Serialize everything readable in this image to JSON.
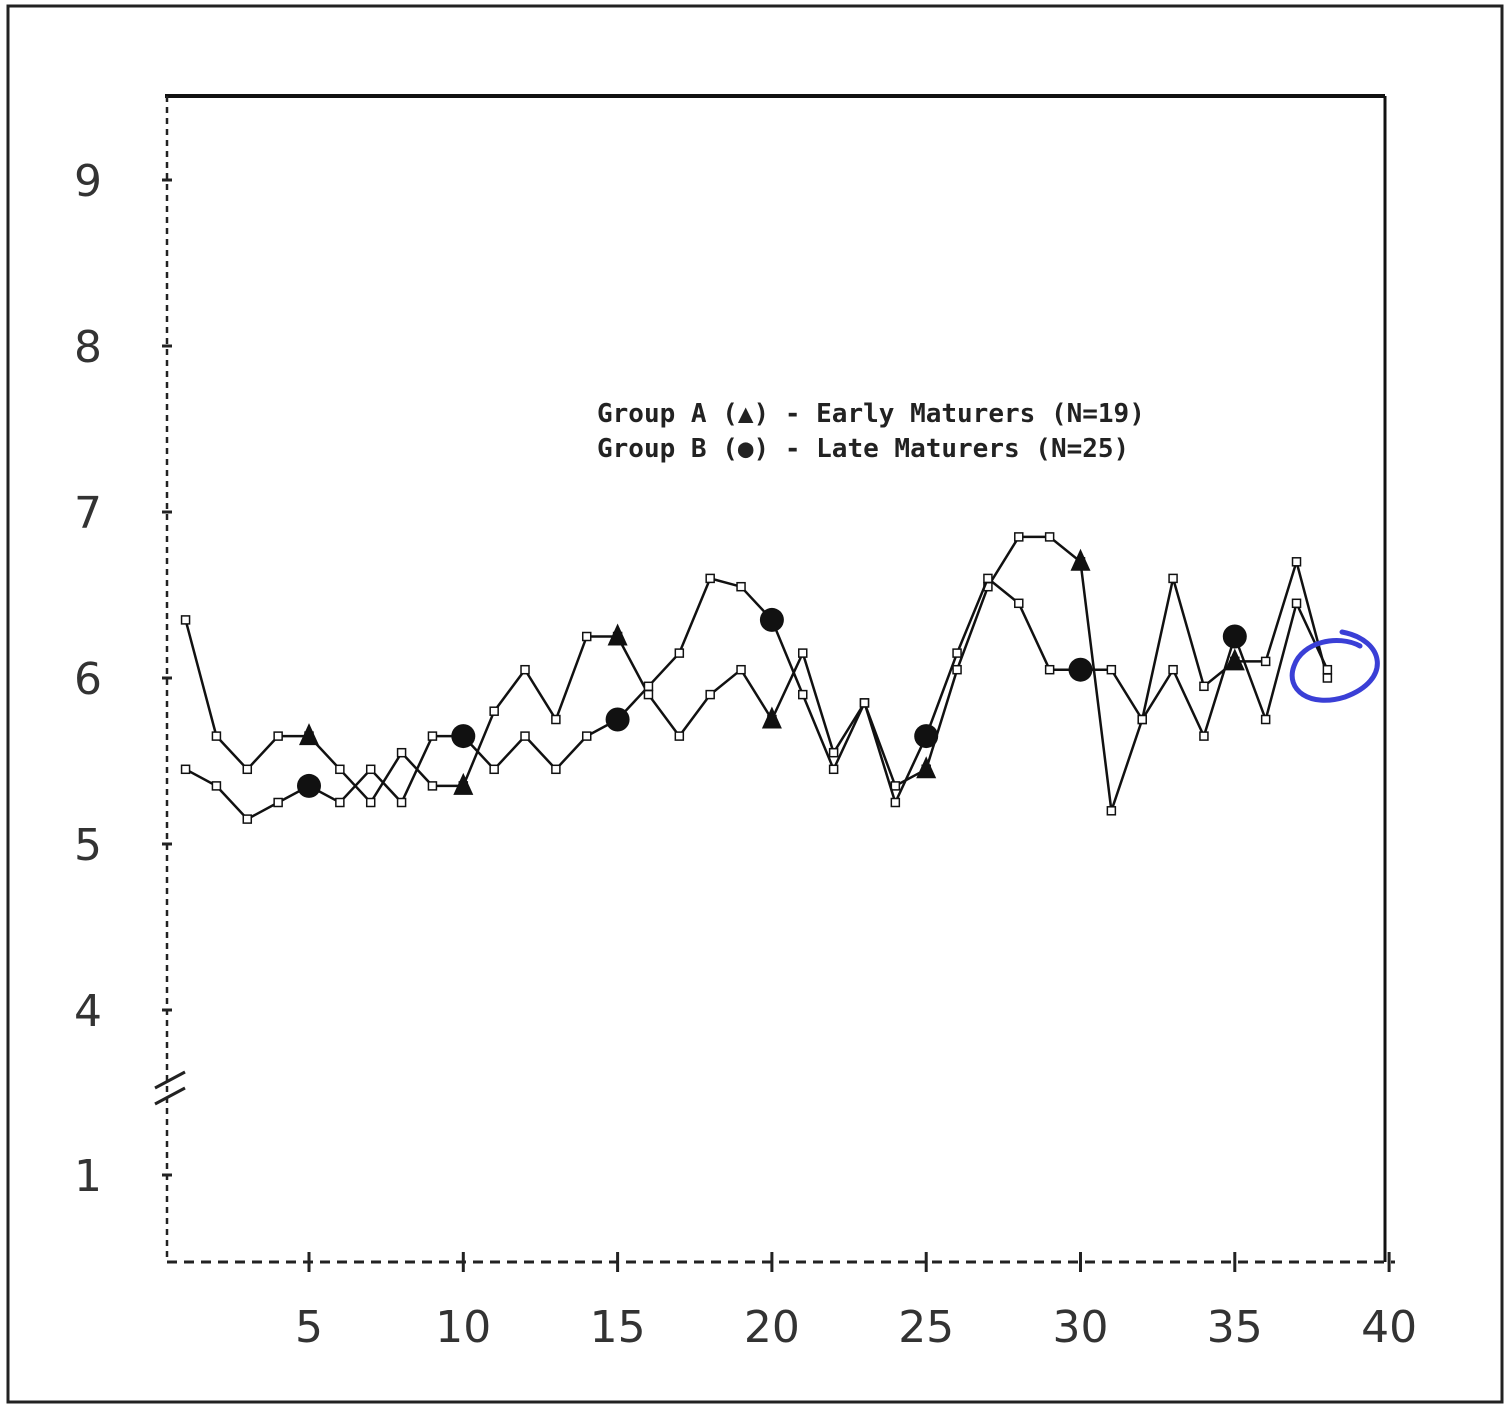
{
  "chart_data": {
    "type": "line",
    "title": "",
    "xlabel": "",
    "ylabel": "",
    "x_ticks": [
      5,
      10,
      15,
      20,
      25,
      30,
      35,
      40
    ],
    "y_ticks": [
      1,
      4,
      5,
      6,
      7,
      8,
      9
    ],
    "y_axis_break": true,
    "xlim": [
      0.5,
      40
    ],
    "grid": false,
    "legend_position": "upper-right inside plot",
    "series": [
      {
        "name": "Group A (▲) - Early Maturers (N=19)",
        "marker": "triangle",
        "x": [
          1,
          2,
          3,
          4,
          5,
          6,
          7,
          8,
          9,
          10,
          11,
          12,
          13,
          14,
          15,
          16,
          17,
          18,
          19,
          20,
          21,
          22,
          23,
          24,
          25,
          26,
          27,
          28,
          29,
          30,
          31,
          32,
          33,
          34,
          35,
          36,
          37,
          38
        ],
        "y": [
          6.35,
          5.65,
          5.45,
          5.65,
          5.65,
          5.45,
          5.25,
          5.55,
          5.35,
          5.35,
          5.8,
          6.05,
          5.75,
          6.25,
          6.25,
          5.9,
          5.65,
          5.9,
          6.05,
          5.75,
          6.15,
          5.55,
          5.85,
          5.35,
          5.45,
          6.05,
          6.55,
          6.85,
          6.85,
          6.7,
          5.2,
          5.75,
          6.6,
          5.95,
          6.1,
          6.1,
          6.7,
          6.0
        ]
      },
      {
        "name": "Group B (●) - Late Maturers (N=25)",
        "marker": "circle",
        "x": [
          1,
          2,
          3,
          4,
          5,
          6,
          7,
          8,
          9,
          10,
          11,
          12,
          13,
          14,
          15,
          16,
          17,
          18,
          19,
          20,
          21,
          22,
          23,
          24,
          25,
          26,
          27,
          28,
          29,
          30,
          31,
          32,
          33,
          34,
          35,
          36,
          37,
          38
        ],
        "y": [
          5.45,
          5.35,
          5.15,
          5.25,
          5.35,
          5.25,
          5.45,
          5.25,
          5.65,
          5.65,
          5.45,
          5.65,
          5.45,
          5.65,
          5.75,
          5.95,
          6.15,
          6.6,
          6.55,
          6.35,
          5.9,
          5.45,
          5.85,
          5.25,
          5.65,
          6.15,
          6.6,
          6.45,
          6.05,
          6.05,
          6.05,
          5.75,
          6.05,
          5.65,
          6.25,
          5.75,
          6.45,
          6.05
        ]
      }
    ],
    "annotations": [
      "hand-drawn blue circle around final point near x=38"
    ]
  },
  "legend": {
    "line_a": "Group A (▲) - Early Maturers (N=19)",
    "line_b": "Group B (●) - Late Maturers (N=25)"
  },
  "colors": {
    "ink": "#111111",
    "annotation_pen": "#3a3fd6"
  }
}
